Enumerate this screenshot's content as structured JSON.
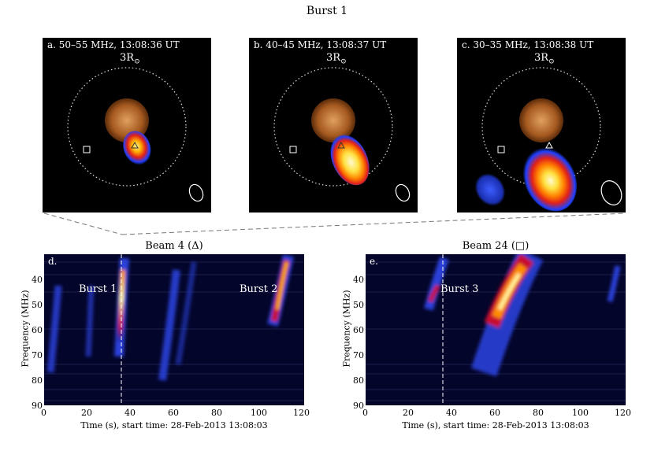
{
  "figure": {
    "suptitle": "Burst 1"
  },
  "images": [
    {
      "label": "a. 50–55 MHz, 13:08:36 UT",
      "radius_label": "3R",
      "radius_sub": "⊙",
      "beam_marker": "triangle-icon"
    },
    {
      "label": "b. 40–45 MHz, 13:08:37 UT",
      "radius_label": "3R",
      "radius_sub": "⊙",
      "beam_marker": "triangle-icon"
    },
    {
      "label": "c. 30–35 MHz, 13:08:38 UT",
      "radius_label": "3R",
      "radius_sub": "⊙",
      "beam_marker": "triangle-icon"
    }
  ],
  "chart_data": [
    {
      "type": "heatmap",
      "panel": "d.",
      "title": "Beam 4 (Δ)",
      "xlabel": "Time (s), start time: 28-Feb-2013 13:08:03",
      "ylabel": "Frequency (MHz)",
      "xlim": [
        0,
        120
      ],
      "ylim": [
        30,
        90
      ],
      "y_inverted": true,
      "xticks": [
        0,
        20,
        40,
        60,
        80,
        100,
        120
      ],
      "yticks": [
        40,
        50,
        60,
        70,
        80,
        90
      ],
      "time_marker_s": 37,
      "annotations": [
        {
          "text": "Burst 1",
          "x": 37,
          "y": 47
        },
        {
          "text": "Burst 2",
          "x": 113,
          "y": 47
        }
      ],
      "colormap": [
        "#04052a",
        "#1a2fb0",
        "#3c5cff",
        "#c8102e",
        "#ff8c00",
        "#fff7a0"
      ]
    },
    {
      "type": "heatmap",
      "panel": "e.",
      "title": "Beam 24 (□)",
      "xlabel": "Time (s), start time: 28-Feb-2013 13:08:03",
      "ylabel": "Frequency (MHz)",
      "xlim": [
        0,
        120
      ],
      "ylim": [
        30,
        90
      ],
      "y_inverted": true,
      "xticks": [
        0,
        20,
        40,
        60,
        80,
        100,
        120
      ],
      "yticks": [
        40,
        50,
        60,
        70,
        80,
        90
      ],
      "time_marker_s": 37,
      "annotations": [
        {
          "text": "Burst 3",
          "x": 37,
          "y": 47
        }
      ],
      "colormap": [
        "#04052a",
        "#1a2fb0",
        "#3c5cff",
        "#c8102e",
        "#ff8c00",
        "#fff7a0"
      ]
    }
  ]
}
